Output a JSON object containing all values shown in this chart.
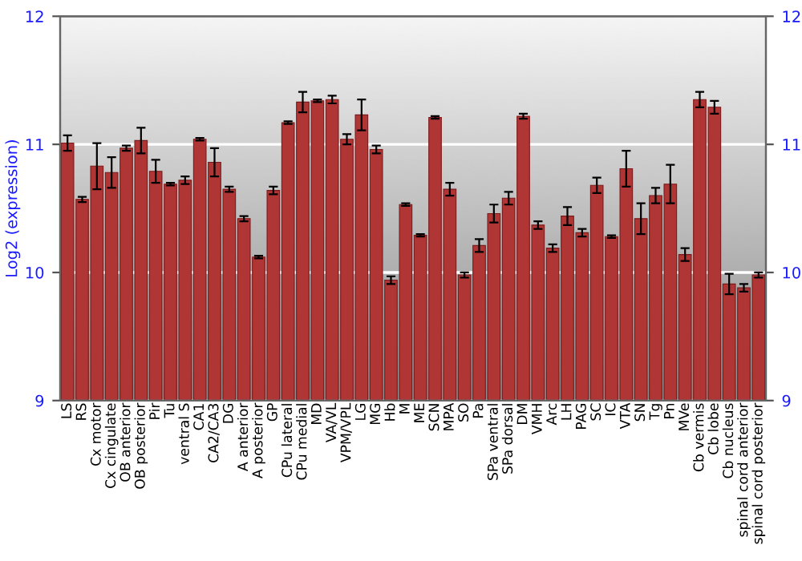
{
  "chart_data": {
    "type": "bar",
    "ylabel": "Log2 (expression)",
    "categories": [
      "LS",
      "RS",
      "Cx motor",
      "Cx cingulate",
      "OB anterior",
      "OB posterior",
      "Pir",
      "Tu",
      "ventral S",
      "CA1",
      "CA2/CA3",
      "DG",
      "A anterior",
      "A posterior",
      "GP",
      "CPu lateral",
      "CPu medial",
      "MD",
      "VA/VL",
      "VPM/VPL",
      "LG",
      "MG",
      "Hb",
      "M",
      "ME",
      "SCN",
      "MPA",
      "SO",
      "Pa",
      "SPa ventral",
      "SPa dorsal",
      "DM",
      "VMH",
      "Arc",
      "LH",
      "PAG",
      "SC",
      "IC",
      "VTA",
      "SN",
      "Tg",
      "Pn",
      "MVe",
      "Cb vermis",
      "Cb lobe",
      "Cb nucleus",
      "spinal cord anterior",
      "spinal cord posterior"
    ],
    "values": [
      11.01,
      10.57,
      10.83,
      10.78,
      10.97,
      11.03,
      10.79,
      10.69,
      10.72,
      11.04,
      10.86,
      10.65,
      10.42,
      10.12,
      10.64,
      11.17,
      11.33,
      11.34,
      11.35,
      11.04,
      11.23,
      10.96,
      9.94,
      10.53,
      10.29,
      11.21,
      10.65,
      9.98,
      10.21,
      10.46,
      10.58,
      11.22,
      10.37,
      10.19,
      10.44,
      10.31,
      10.68,
      10.28,
      10.81,
      10.42,
      10.6,
      10.69,
      10.14,
      11.35,
      11.29,
      9.91,
      9.88,
      9.98
    ],
    "errors": [
      0.06,
      0.02,
      0.18,
      0.12,
      0.02,
      0.1,
      0.09,
      0.01,
      0.03,
      0.01,
      0.11,
      0.02,
      0.02,
      0.01,
      0.03,
      0.01,
      0.08,
      0.01,
      0.03,
      0.04,
      0.12,
      0.03,
      0.03,
      0.01,
      0.01,
      0.01,
      0.05,
      0.02,
      0.05,
      0.07,
      0.05,
      0.02,
      0.03,
      0.03,
      0.07,
      0.03,
      0.06,
      0.01,
      0.14,
      0.12,
      0.06,
      0.15,
      0.05,
      0.06,
      0.05,
      0.08,
      0.03,
      0.02
    ],
    "color": "#b03535",
    "ylim": [
      9,
      12
    ],
    "yticks": [
      9,
      10,
      11,
      12
    ],
    "y2lim": [
      9,
      12
    ],
    "y2ticks": [
      9,
      10,
      11,
      12
    ],
    "grid": "y"
  }
}
